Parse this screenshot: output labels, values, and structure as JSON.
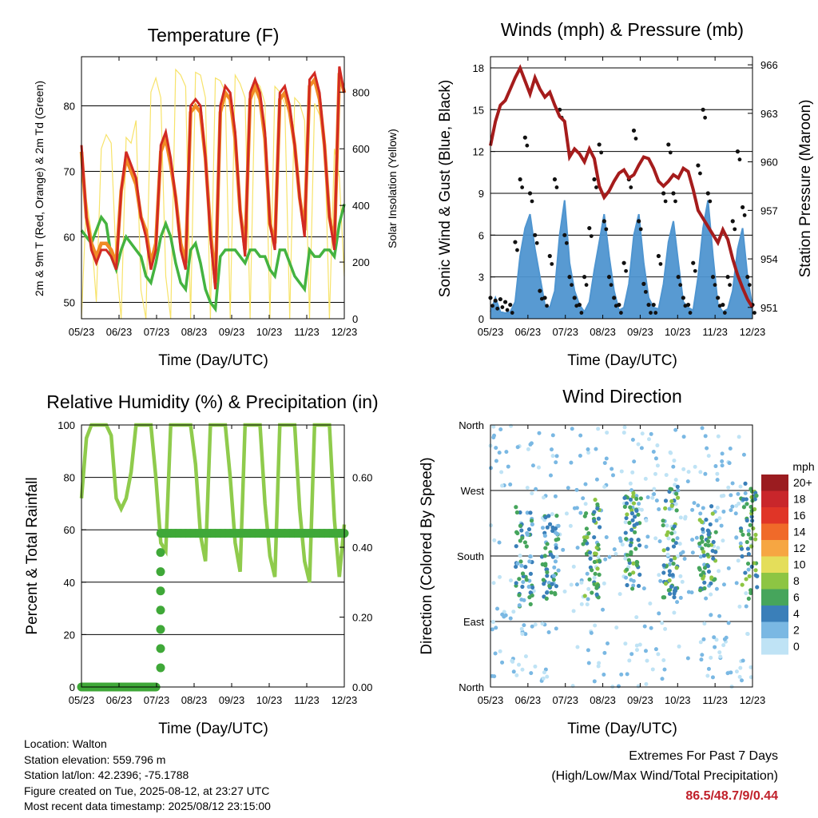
{
  "panels": {
    "temperature": {
      "title": "Temperature (F)",
      "ylabel": "2m & 9m T (Red, Orange) & 2m Td (Green)",
      "y2label": "Solar Insolation (Yellow)",
      "xlabel": "Time (Day/UTC)"
    },
    "winds": {
      "title": "Winds (mph) & Pressure (mb)",
      "ylabel": "Sonic Wind & Gust (Blue, Black)",
      "y2label": "Station Pressure (Maroon)",
      "xlabel": "Time (Day/UTC)"
    },
    "humidity": {
      "title": "Relative Humidity (%) & Precipitation (in)",
      "ylabel": "Percent & Total Rainfall",
      "xlabel": "Time (Day/UTC)"
    },
    "direction": {
      "title": "Wind Direction",
      "ylabel": "Direction (Colored By Speed)",
      "xlabel": "Time (Day/UTC)",
      "legend_title": "mph",
      "legend_labels": [
        "20+",
        "18",
        "16",
        "14",
        "12",
        "10",
        "8",
        "6",
        "4",
        "2",
        "0"
      ],
      "legend_colors": [
        "#9b1c20",
        "#c9262b",
        "#e03527",
        "#f06a29",
        "#f6a642",
        "#e4de5a",
        "#8dc543",
        "#46a55c",
        "#3a7fb9",
        "#7ab8e3",
        "#bfe3f5"
      ]
    }
  },
  "info": {
    "location": "Location: Walton",
    "elevation": "Station elevation: 559.796 m",
    "latlon": "Station lat/lon: 42.2396; -75.1788",
    "created": "Figure created on Tue, 2025-08-12, at 23:27 UTC",
    "recent": "Most recent data timestamp: 2025/08/12 23:15:00"
  },
  "extremes": {
    "line1": "Extremes For Past 7 Days",
    "line2": "(High/Low/Max Wind/Total Precipitation)",
    "value": "86.5/48.7/9/0.44"
  },
  "chart_data": [
    {
      "type": "line",
      "id": "temperature",
      "title": "Temperature (F)",
      "xlabel": "Time (Day/UTC)",
      "ylabel": "2m & 9m T (Red, Orange) & 2m Td (Green)",
      "y2label": "Solar Insolation (Yellow)",
      "x_ticks": [
        "05/23",
        "06/23",
        "07/23",
        "08/23",
        "09/23",
        "10/23",
        "11/23",
        "12/23"
      ],
      "ylim": [
        47.5,
        87.5
      ],
      "y_ticks": [
        50,
        60,
        70,
        80
      ],
      "y2lim": [
        0,
        925
      ],
      "y2_ticks": [
        0,
        200,
        400,
        600,
        800
      ],
      "grid": "horizontal",
      "series": [
        {
          "color": "#d22a22",
          "values": [
            74,
            63,
            58,
            56,
            58,
            58,
            57,
            55,
            67,
            73,
            71,
            69,
            63,
            60,
            55,
            58,
            74,
            76,
            72,
            66,
            58,
            55,
            80,
            81,
            80,
            72,
            60,
            52,
            80,
            83,
            82,
            76,
            64,
            57,
            82,
            84,
            82,
            76,
            62,
            58,
            82,
            83,
            80,
            74,
            66,
            60,
            84,
            85,
            82,
            74,
            63,
            58,
            86,
            82
          ]
        },
        {
          "color": "#f08a24",
          "values": [
            73,
            63,
            59,
            57,
            59,
            59,
            58,
            56,
            67,
            72,
            70,
            68,
            63,
            61,
            56,
            59,
            73,
            75,
            71,
            66,
            59,
            56,
            79,
            80,
            79,
            72,
            61,
            53,
            79,
            82,
            81,
            75,
            64,
            58,
            81,
            83,
            81,
            75,
            62,
            59,
            81,
            82,
            79,
            74,
            66,
            61,
            83,
            84,
            81,
            74,
            63,
            59,
            85,
            82
          ]
        },
        {
          "color": "#44b340",
          "values": [
            61,
            60,
            59,
            61,
            63,
            62,
            57,
            55,
            58,
            60,
            59,
            58,
            57,
            54,
            53,
            56,
            60,
            62,
            60,
            56,
            53,
            52,
            58,
            59,
            56,
            52,
            50,
            49,
            57,
            58,
            58,
            58,
            57,
            56,
            58,
            58,
            57,
            57,
            55,
            54,
            58,
            58,
            56,
            54,
            53,
            52,
            58,
            57,
            57,
            58,
            58,
            57,
            62,
            65
          ]
        },
        {
          "color": "#f7e36a",
          "values": [
            0,
            420,
            300,
            60,
            600,
            650,
            620,
            200,
            0,
            640,
            620,
            700,
            100,
            0,
            800,
            850,
            780,
            150,
            0,
            880,
            860,
            820,
            0,
            870,
            860,
            780,
            0,
            850,
            840,
            800,
            0,
            860,
            830,
            780,
            0,
            840,
            820,
            760,
            0,
            820,
            800,
            760,
            0,
            780,
            760,
            700,
            0,
            760,
            720,
            650,
            0,
            600,
            500,
            150
          ]
        }
      ]
    },
    {
      "type": "line",
      "id": "winds",
      "title": "Winds (mph) & Pressure (mb)",
      "xlabel": "Time (Day/UTC)",
      "ylabel": "Sonic Wind & Gust (Blue, Black)",
      "y2label": "Station Pressure (Maroon)",
      "x_ticks": [
        "05/23",
        "06/23",
        "07/23",
        "08/23",
        "09/23",
        "10/23",
        "11/23",
        "12/23"
      ],
      "ylim": [
        0,
        18.8
      ],
      "y_ticks": [
        0,
        3,
        6,
        9,
        12,
        15,
        18
      ],
      "y2lim": [
        950.3,
        966.5
      ],
      "y2_ticks": [
        951,
        954,
        957,
        960,
        963,
        966
      ],
      "grid": "horizontal",
      "series": [
        {
          "name": "pressure",
          "color": "#a51c1c",
          "values": [
            961.0,
            962.5,
            963.5,
            963.8,
            964.5,
            965.2,
            965.8,
            965.0,
            964.2,
            965.2,
            964.5,
            964.0,
            964.3,
            963.5,
            962.8,
            962.5,
            960.3,
            960.8,
            960.5,
            960.0,
            960.8,
            960.2,
            958.5,
            957.8,
            958.2,
            958.8,
            959.3,
            959.5,
            959.0,
            959.2,
            959.8,
            960.3,
            960.2,
            959.6,
            958.8,
            958.5,
            958.8,
            959.2,
            959.0,
            959.6,
            959.4,
            958.3,
            957.0,
            956.5,
            956.0,
            955.5,
            955.0,
            955.8,
            955.2,
            954.0,
            953.0,
            952.2,
            951.5,
            951.0
          ]
        },
        {
          "name": "wind",
          "color": "#4f95d0",
          "values": [
            0.5,
            1.5,
            0.5,
            0.4,
            0.5,
            1.2,
            4.5,
            6.5,
            7.5,
            5.0,
            3.0,
            1.0,
            0.8,
            2.0,
            6.0,
            8.5,
            4.0,
            2.0,
            1.0,
            0.5,
            1.2,
            3.5,
            5.5,
            7.5,
            4.5,
            2.0,
            0.6,
            0.8,
            2.5,
            6.0,
            7.5,
            4.0,
            1.5,
            0.8,
            0.7,
            2.5,
            5.5,
            7.0,
            4.0,
            1.2,
            0.8,
            0.6,
            3.0,
            6.5,
            8.5,
            4.5,
            1.0,
            0.5,
            0.7,
            2.0,
            5.0,
            6.5,
            3.0,
            0.8
          ]
        },
        {
          "name": "gust",
          "color": "#111111",
          "values": [
            1.5,
            1.3,
            1.4,
            1.2,
            1.0,
            5.5,
            10.0,
            13.0,
            9.0,
            6.0,
            2.0,
            1.5,
            4.5,
            10.0,
            15.0,
            6.0,
            3.0,
            1.5,
            1.0,
            3.0,
            6.5,
            10.0,
            12.5,
            7.0,
            3.0,
            1.5,
            1.0,
            4.0,
            10.0,
            13.5,
            7.0,
            2.5,
            1.0,
            1.0,
            4.5,
            9.0,
            12.5,
            9.0,
            3.0,
            1.5,
            1.0,
            4.0,
            11.0,
            15.0,
            9.0,
            3.0,
            1.5,
            1.0,
            3.0,
            7.0,
            12.0,
            8.0,
            3.0,
            1.0
          ]
        }
      ]
    },
    {
      "type": "line",
      "id": "humidity",
      "title": "Relative Humidity (%) & Precipitation (in)",
      "xlabel": "Time (Day/UTC)",
      "ylabel": "Percent & Total Rainfall",
      "x_ticks": [
        "05/23",
        "06/23",
        "07/23",
        "08/23",
        "09/23",
        "10/23",
        "11/23",
        "12/23"
      ],
      "ylim": [
        0,
        100
      ],
      "y_ticks": [
        0,
        20,
        40,
        60,
        80,
        100
      ],
      "y2lim": [
        0,
        0.75
      ],
      "y2_ticks": [
        "0.00",
        "0.20",
        "0.40",
        "0.60"
      ],
      "grid": "horizontal",
      "series": [
        {
          "name": "rh",
          "color": "#8fcb4c",
          "values": [
            72,
            95,
            100,
            100,
            100,
            100,
            96,
            72,
            68,
            72,
            82,
            100,
            100,
            100,
            100,
            80,
            55,
            52,
            100,
            100,
            100,
            100,
            100,
            85,
            58,
            48,
            100,
            100,
            100,
            100,
            80,
            55,
            44,
            100,
            100,
            100,
            100,
            70,
            50,
            42,
            100,
            100,
            100,
            100,
            68,
            48,
            40,
            100,
            100,
            100,
            100,
            64,
            42,
            62
          ]
        },
        {
          "name": "precip",
          "color": "#3fa838",
          "values": [
            0,
            0,
            0,
            0,
            0,
            0,
            0,
            0,
            0,
            0,
            0,
            0,
            0,
            0,
            0,
            0,
            0.44,
            0.44,
            0.44,
            0.44,
            0.44,
            0.44,
            0.44,
            0.44,
            0.44,
            0.44,
            0.44,
            0.44,
            0.44,
            0.44,
            0.44,
            0.44,
            0.44,
            0.44,
            0.44,
            0.44,
            0.44,
            0.44,
            0.44,
            0.44,
            0.44,
            0.44,
            0.44,
            0.44,
            0.44,
            0.44,
            0.44,
            0.44,
            0.44,
            0.44,
            0.44,
            0.44,
            0.44,
            0.44
          ]
        }
      ]
    },
    {
      "type": "scatter",
      "id": "direction",
      "title": "Wind Direction",
      "xlabel": "Time (Day/UTC)",
      "ylabel": "Direction (Colored By Speed)",
      "x_ticks": [
        "05/23",
        "06/23",
        "07/23",
        "08/23",
        "09/23",
        "10/23",
        "11/23",
        "12/23"
      ],
      "y_ticks": [
        "North",
        "East",
        "South",
        "West",
        "North"
      ],
      "ylim": [
        0,
        360
      ],
      "grid": "horizontal",
      "colorbar": {
        "title": "mph",
        "labels": [
          "20+",
          "18",
          "16",
          "14",
          "12",
          "10",
          "8",
          "6",
          "4",
          "2",
          "0"
        ]
      },
      "clusters": [
        {
          "x": 0.9,
          "dir_center": 180,
          "dir_spread": 70,
          "speed": 5
        },
        {
          "x": 1.6,
          "dir_center": 180,
          "dir_spread": 60,
          "speed": 5
        },
        {
          "x": 2.7,
          "dir_center": 190,
          "dir_spread": 70,
          "speed": 6
        },
        {
          "x": 3.8,
          "dir_center": 200,
          "dir_spread": 70,
          "speed": 6
        },
        {
          "x": 4.8,
          "dir_center": 200,
          "dir_spread": 80,
          "speed": 6
        },
        {
          "x": 5.8,
          "dir_center": 190,
          "dir_spread": 60,
          "speed": 6
        },
        {
          "x": 6.9,
          "dir_center": 200,
          "dir_spread": 80,
          "speed": 6
        }
      ]
    }
  ]
}
